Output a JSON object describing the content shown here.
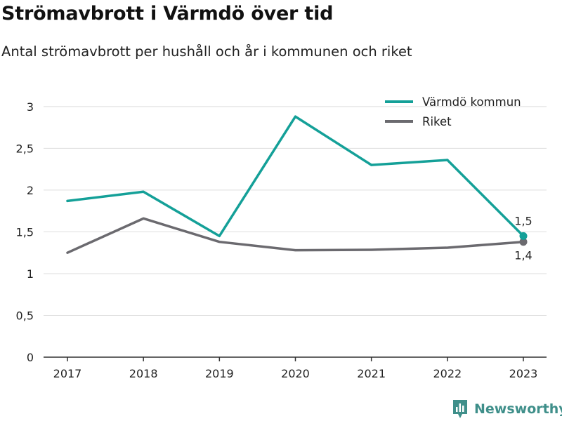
{
  "title": "Strömavbrott i Värmdö över tid",
  "subtitle": "Antal strömavbrott per hushåll och år i kommunen och riket",
  "brand": "Newsworthy",
  "colors": {
    "series_varmdo": "#14a098",
    "series_riket": "#6b6a6f",
    "grid": "#dddddd",
    "axis": "#333333",
    "brand": "#3f8f8a"
  },
  "chart_data": {
    "type": "line",
    "x": [
      "2017",
      "2018",
      "2019",
      "2020",
      "2021",
      "2022",
      "2023"
    ],
    "ylim": [
      0,
      3.2
    ],
    "yticks": [
      0,
      0.5,
      1,
      1.5,
      2,
      2.5,
      3
    ],
    "ytick_labels": [
      "0",
      "0,5",
      "1",
      "1,5",
      "2",
      "2,5",
      "3"
    ],
    "grid": true,
    "legend": "top-right",
    "series": [
      {
        "name": "Värmdö kommun",
        "values": [
          1.87,
          1.98,
          1.45,
          2.88,
          2.3,
          2.36,
          1.45
        ],
        "end_label": "1,5",
        "color": "#14a098"
      },
      {
        "name": "Riket",
        "values": [
          1.25,
          1.66,
          1.38,
          1.28,
          1.285,
          1.31,
          1.38
        ],
        "end_label": "1,4",
        "color": "#6b6a6f"
      }
    ]
  }
}
